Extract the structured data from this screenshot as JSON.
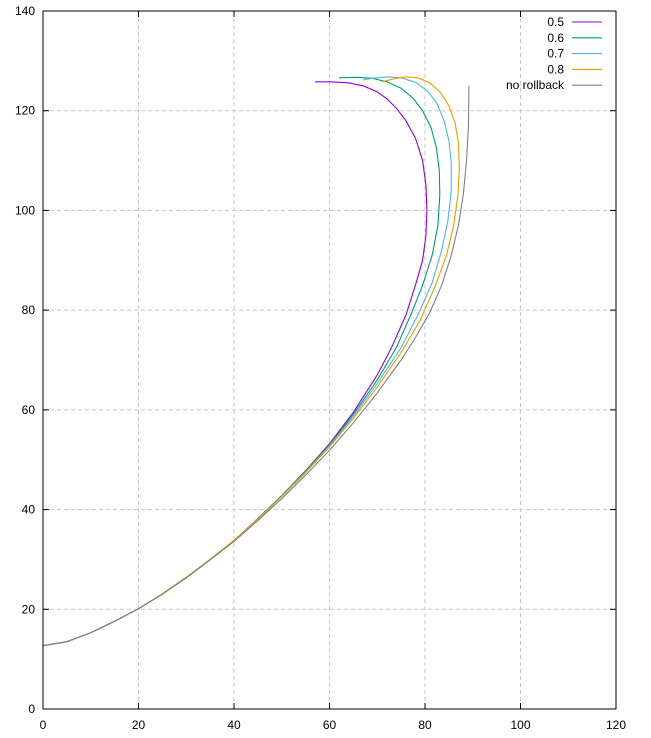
{
  "chart_data": {
    "type": "line",
    "title": "",
    "xlabel": "",
    "ylabel": "",
    "xlim": [
      0,
      120
    ],
    "ylim": [
      0,
      140
    ],
    "xticks": [
      0,
      20,
      40,
      60,
      80,
      100,
      120
    ],
    "yticks": [
      0,
      20,
      40,
      60,
      80,
      100,
      120,
      140
    ],
    "grid": true,
    "legend_position": "top-right",
    "series": [
      {
        "name": "0.5",
        "color": "#9400d3",
        "x": [
          0,
          5,
          10,
          15,
          20,
          25,
          30,
          35,
          40,
          45,
          50,
          55,
          60,
          65,
          70,
          73,
          76,
          78,
          79.5,
          80.2,
          80.4,
          80.2,
          79.5,
          78,
          76,
          74,
          72,
          70,
          67,
          64,
          60,
          57
        ],
        "y": [
          12.7,
          13.5,
          15.3,
          17.6,
          20.1,
          23.1,
          26.4,
          30,
          33.8,
          38.2,
          42.8,
          47.8,
          53.2,
          59.5,
          67,
          72.5,
          79,
          85,
          90,
          95,
          100,
          105,
          110,
          114.5,
          118,
          120.5,
          122.4,
          123.8,
          125,
          125.6,
          125.8,
          125.8
        ]
      },
      {
        "name": "0.6",
        "color": "#009e73",
        "x": [
          0,
          5,
          10,
          15,
          20,
          25,
          30,
          35,
          40,
          45,
          50,
          55,
          60,
          65,
          70,
          74,
          77,
          79.5,
          81.5,
          82.7,
          83.1,
          83,
          82.4,
          81.3,
          79.5,
          77.5,
          75,
          72,
          69,
          66,
          62
        ],
        "y": [
          12.7,
          13.5,
          15.3,
          17.6,
          20.1,
          23.1,
          26.4,
          30,
          33.8,
          38.2,
          42.8,
          47.7,
          53,
          59.1,
          66,
          72.5,
          79,
          85,
          91,
          97,
          103,
          108,
          112.5,
          116.5,
          120,
          122.5,
          124.5,
          125.8,
          126.5,
          126.7,
          126.6
        ]
      },
      {
        "name": "0.7",
        "color": "#56b4e9",
        "x": [
          0,
          5,
          10,
          15,
          20,
          25,
          30,
          35,
          40,
          45,
          50,
          55,
          60,
          65,
          70,
          75,
          78.5,
          81.5,
          83.5,
          84.8,
          85.5,
          85.5,
          85,
          84,
          82.5,
          80.5,
          78,
          75,
          72,
          69,
          67
        ],
        "y": [
          12.7,
          13.5,
          15.3,
          17.6,
          20.1,
          23.1,
          26.4,
          30,
          33.8,
          38.1,
          42.7,
          47.5,
          52.8,
          58.7,
          65.3,
          72.5,
          79,
          85.5,
          92,
          98,
          104,
          109.5,
          114,
          118,
          121.5,
          124,
          125.7,
          126.6,
          126.8,
          126.5,
          126.2
        ]
      },
      {
        "name": "0.8",
        "color": "#e69f00",
        "x": [
          0,
          5,
          10,
          15,
          20,
          25,
          30,
          35,
          40,
          45,
          50,
          55,
          60,
          65,
          70,
          75,
          79,
          82,
          84.5,
          86,
          86.9,
          87.2,
          87,
          86.3,
          85,
          83.3,
          81,
          78.5,
          76,
          73.5,
          71
        ],
        "y": [
          12.7,
          13.5,
          15.3,
          17.6,
          20.1,
          23.1,
          26.4,
          30,
          33.8,
          38.1,
          42.6,
          47.4,
          52.6,
          58.3,
          64.6,
          71.5,
          78,
          84.5,
          91,
          97,
          103,
          108.5,
          113.5,
          117.5,
          121,
          123.6,
          125.6,
          126.6,
          126.8,
          126.4,
          125.8
        ]
      },
      {
        "name": "no rollback",
        "color": "#808080",
        "x": [
          0,
          5,
          10,
          15,
          20,
          25,
          30,
          35,
          40,
          45,
          50,
          55,
          60,
          65,
          70,
          75,
          78,
          81,
          83.5,
          85.5,
          87,
          88,
          88.7,
          89.1,
          89.2
        ],
        "y": [
          12.7,
          13.5,
          15.3,
          17.6,
          20.1,
          23,
          26.3,
          29.9,
          33.6,
          37.8,
          42.2,
          46.9,
          51.9,
          57.4,
          63.4,
          70,
          74.5,
          79.5,
          85,
          91,
          97,
          103,
          110,
          117,
          125
        ]
      }
    ]
  }
}
